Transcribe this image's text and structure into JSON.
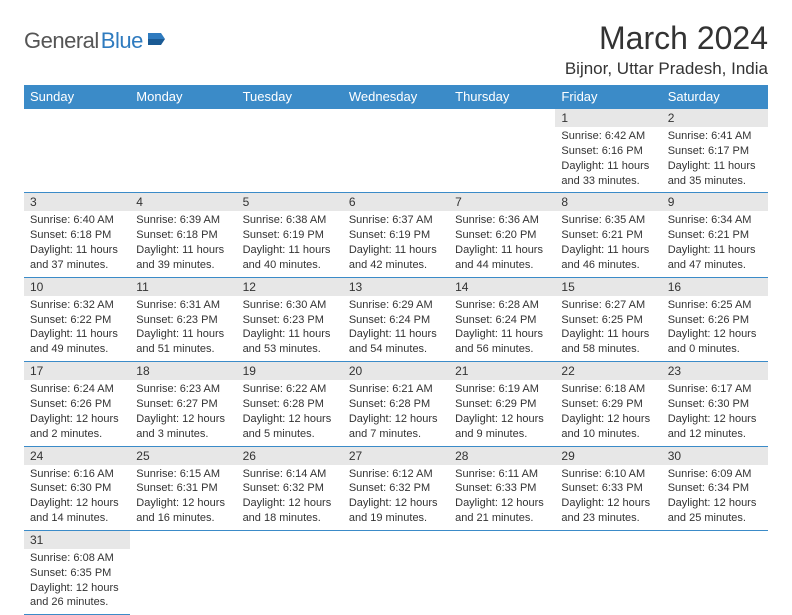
{
  "logo": {
    "general": "General",
    "blue": "Blue"
  },
  "title": "March 2024",
  "location": "Bijnor, Uttar Pradesh, India",
  "colors": {
    "header_bg": "#3b8bc8",
    "header_text": "#ffffff",
    "daynum_bg": "#e7e7e7",
    "row_border": "#3b8bc8",
    "logo_blue": "#2f7bbf",
    "body_text": "#333333"
  },
  "weekdays": [
    "Sunday",
    "Monday",
    "Tuesday",
    "Wednesday",
    "Thursday",
    "Friday",
    "Saturday"
  ],
  "weeks": [
    [
      {
        "n": "",
        "lines": []
      },
      {
        "n": "",
        "lines": []
      },
      {
        "n": "",
        "lines": []
      },
      {
        "n": "",
        "lines": []
      },
      {
        "n": "",
        "lines": []
      },
      {
        "n": "1",
        "lines": [
          "Sunrise: 6:42 AM",
          "Sunset: 6:16 PM",
          "Daylight: 11 hours and 33 minutes."
        ]
      },
      {
        "n": "2",
        "lines": [
          "Sunrise: 6:41 AM",
          "Sunset: 6:17 PM",
          "Daylight: 11 hours and 35 minutes."
        ]
      }
    ],
    [
      {
        "n": "3",
        "lines": [
          "Sunrise: 6:40 AM",
          "Sunset: 6:18 PM",
          "Daylight: 11 hours and 37 minutes."
        ]
      },
      {
        "n": "4",
        "lines": [
          "Sunrise: 6:39 AM",
          "Sunset: 6:18 PM",
          "Daylight: 11 hours and 39 minutes."
        ]
      },
      {
        "n": "5",
        "lines": [
          "Sunrise: 6:38 AM",
          "Sunset: 6:19 PM",
          "Daylight: 11 hours and 40 minutes."
        ]
      },
      {
        "n": "6",
        "lines": [
          "Sunrise: 6:37 AM",
          "Sunset: 6:19 PM",
          "Daylight: 11 hours and 42 minutes."
        ]
      },
      {
        "n": "7",
        "lines": [
          "Sunrise: 6:36 AM",
          "Sunset: 6:20 PM",
          "Daylight: 11 hours and 44 minutes."
        ]
      },
      {
        "n": "8",
        "lines": [
          "Sunrise: 6:35 AM",
          "Sunset: 6:21 PM",
          "Daylight: 11 hours and 46 minutes."
        ]
      },
      {
        "n": "9",
        "lines": [
          "Sunrise: 6:34 AM",
          "Sunset: 6:21 PM",
          "Daylight: 11 hours and 47 minutes."
        ]
      }
    ],
    [
      {
        "n": "10",
        "lines": [
          "Sunrise: 6:32 AM",
          "Sunset: 6:22 PM",
          "Daylight: 11 hours and 49 minutes."
        ]
      },
      {
        "n": "11",
        "lines": [
          "Sunrise: 6:31 AM",
          "Sunset: 6:23 PM",
          "Daylight: 11 hours and 51 minutes."
        ]
      },
      {
        "n": "12",
        "lines": [
          "Sunrise: 6:30 AM",
          "Sunset: 6:23 PM",
          "Daylight: 11 hours and 53 minutes."
        ]
      },
      {
        "n": "13",
        "lines": [
          "Sunrise: 6:29 AM",
          "Sunset: 6:24 PM",
          "Daylight: 11 hours and 54 minutes."
        ]
      },
      {
        "n": "14",
        "lines": [
          "Sunrise: 6:28 AM",
          "Sunset: 6:24 PM",
          "Daylight: 11 hours and 56 minutes."
        ]
      },
      {
        "n": "15",
        "lines": [
          "Sunrise: 6:27 AM",
          "Sunset: 6:25 PM",
          "Daylight: 11 hours and 58 minutes."
        ]
      },
      {
        "n": "16",
        "lines": [
          "Sunrise: 6:25 AM",
          "Sunset: 6:26 PM",
          "Daylight: 12 hours and 0 minutes."
        ]
      }
    ],
    [
      {
        "n": "17",
        "lines": [
          "Sunrise: 6:24 AM",
          "Sunset: 6:26 PM",
          "Daylight: 12 hours and 2 minutes."
        ]
      },
      {
        "n": "18",
        "lines": [
          "Sunrise: 6:23 AM",
          "Sunset: 6:27 PM",
          "Daylight: 12 hours and 3 minutes."
        ]
      },
      {
        "n": "19",
        "lines": [
          "Sunrise: 6:22 AM",
          "Sunset: 6:28 PM",
          "Daylight: 12 hours and 5 minutes."
        ]
      },
      {
        "n": "20",
        "lines": [
          "Sunrise: 6:21 AM",
          "Sunset: 6:28 PM",
          "Daylight: 12 hours and 7 minutes."
        ]
      },
      {
        "n": "21",
        "lines": [
          "Sunrise: 6:19 AM",
          "Sunset: 6:29 PM",
          "Daylight: 12 hours and 9 minutes."
        ]
      },
      {
        "n": "22",
        "lines": [
          "Sunrise: 6:18 AM",
          "Sunset: 6:29 PM",
          "Daylight: 12 hours and 10 minutes."
        ]
      },
      {
        "n": "23",
        "lines": [
          "Sunrise: 6:17 AM",
          "Sunset: 6:30 PM",
          "Daylight: 12 hours and 12 minutes."
        ]
      }
    ],
    [
      {
        "n": "24",
        "lines": [
          "Sunrise: 6:16 AM",
          "Sunset: 6:30 PM",
          "Daylight: 12 hours and 14 minutes."
        ]
      },
      {
        "n": "25",
        "lines": [
          "Sunrise: 6:15 AM",
          "Sunset: 6:31 PM",
          "Daylight: 12 hours and 16 minutes."
        ]
      },
      {
        "n": "26",
        "lines": [
          "Sunrise: 6:14 AM",
          "Sunset: 6:32 PM",
          "Daylight: 12 hours and 18 minutes."
        ]
      },
      {
        "n": "27",
        "lines": [
          "Sunrise: 6:12 AM",
          "Sunset: 6:32 PM",
          "Daylight: 12 hours and 19 minutes."
        ]
      },
      {
        "n": "28",
        "lines": [
          "Sunrise: 6:11 AM",
          "Sunset: 6:33 PM",
          "Daylight: 12 hours and 21 minutes."
        ]
      },
      {
        "n": "29",
        "lines": [
          "Sunrise: 6:10 AM",
          "Sunset: 6:33 PM",
          "Daylight: 12 hours and 23 minutes."
        ]
      },
      {
        "n": "30",
        "lines": [
          "Sunrise: 6:09 AM",
          "Sunset: 6:34 PM",
          "Daylight: 12 hours and 25 minutes."
        ]
      }
    ],
    [
      {
        "n": "31",
        "lines": [
          "Sunrise: 6:08 AM",
          "Sunset: 6:35 PM",
          "Daylight: 12 hours and 26 minutes."
        ]
      },
      {
        "n": "",
        "lines": []
      },
      {
        "n": "",
        "lines": []
      },
      {
        "n": "",
        "lines": []
      },
      {
        "n": "",
        "lines": []
      },
      {
        "n": "",
        "lines": []
      },
      {
        "n": "",
        "lines": []
      }
    ]
  ]
}
